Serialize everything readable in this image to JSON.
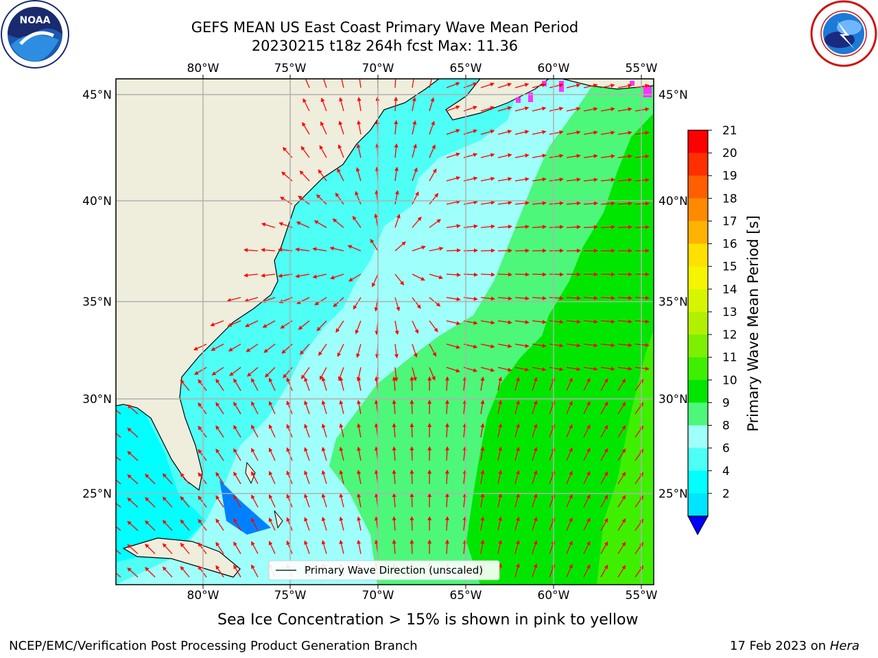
{
  "header": {
    "title_line1": "GEFS MEAN US East Coast Primary Wave Mean Period",
    "title_line2": "20230215 t18z 264h fcst   Max: 11.36"
  },
  "logos": {
    "left": {
      "name": "noaa-logo",
      "text": "NOAA",
      "ring_text": "NATIONAL OCEANIC AND ATMOSPHERIC ADMINISTRATION · U.S. DEPARTMENT OF COMMERCE"
    },
    "right": {
      "name": "nws-logo",
      "ring_text": "NATIONAL WEATHER SERVICE"
    }
  },
  "map": {
    "lon_labels": [
      "80°W",
      "75°W",
      "70°W",
      "65°W",
      "60°W",
      "55°W"
    ],
    "lat_labels": [
      "45°N",
      "40°N",
      "35°N",
      "30°N",
      "25°N"
    ],
    "legend_label": "Primary Wave Direction (unscaled)",
    "colors": {
      "land": "#efeddc",
      "arrow": "#ff0000",
      "ice": "#ff33ff",
      "grid": "#b0b0b0"
    }
  },
  "colorbar": {
    "label": "Primary Wave Mean Period [s]",
    "ticks": [
      "21",
      "20",
      "19",
      "18",
      "17",
      "16",
      "15",
      "14",
      "13",
      "12",
      "11",
      "10",
      "9",
      "8",
      "6",
      "4",
      "2"
    ],
    "colors": [
      "#ff0000",
      "#ff2f00",
      "#ff5f00",
      "#ff8a00",
      "#ffb300",
      "#ffe000",
      "#f5f500",
      "#d7f500",
      "#b3f000",
      "#7df000",
      "#3ef000",
      "#00e600",
      "#4df77a",
      "#9ffffa",
      "#4dfff5",
      "#00ffff",
      "#00e5ff",
      "#0080ff"
    ],
    "extend_color": "#0000ff"
  },
  "captions": {
    "ice_note": "Sea Ice Concentration > 15% is shown in pink to yellow",
    "credit": "NCEP/EMC/Verification Post Processing Product Generation Branch",
    "date": "17 Feb 2023 on ",
    "host": "Hera"
  }
}
